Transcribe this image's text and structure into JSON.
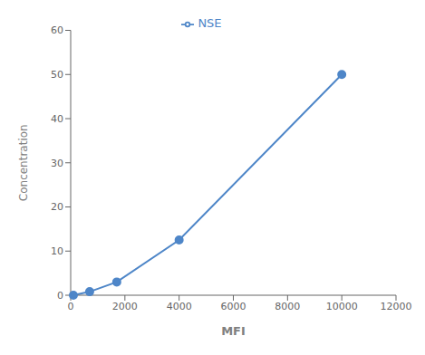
{
  "chart_data": {
    "type": "line",
    "x": [
      100,
      700,
      1700,
      4000,
      10000
    ],
    "series": [
      {
        "name": "NSE",
        "color": "#4e86c8",
        "marker": "o",
        "values": [
          0,
          0.8,
          3,
          12.5,
          50
        ]
      }
    ],
    "xlabel": "MFI",
    "ylabel": "Concentration",
    "xlim": [
      0,
      12000
    ],
    "ylim": [
      0,
      60
    ],
    "xticks": [
      0,
      2000,
      4000,
      6000,
      8000,
      10000,
      12000
    ],
    "yticks": [
      0,
      10,
      20,
      30,
      40,
      50,
      60
    ],
    "grid": false,
    "legend": "upper center"
  }
}
